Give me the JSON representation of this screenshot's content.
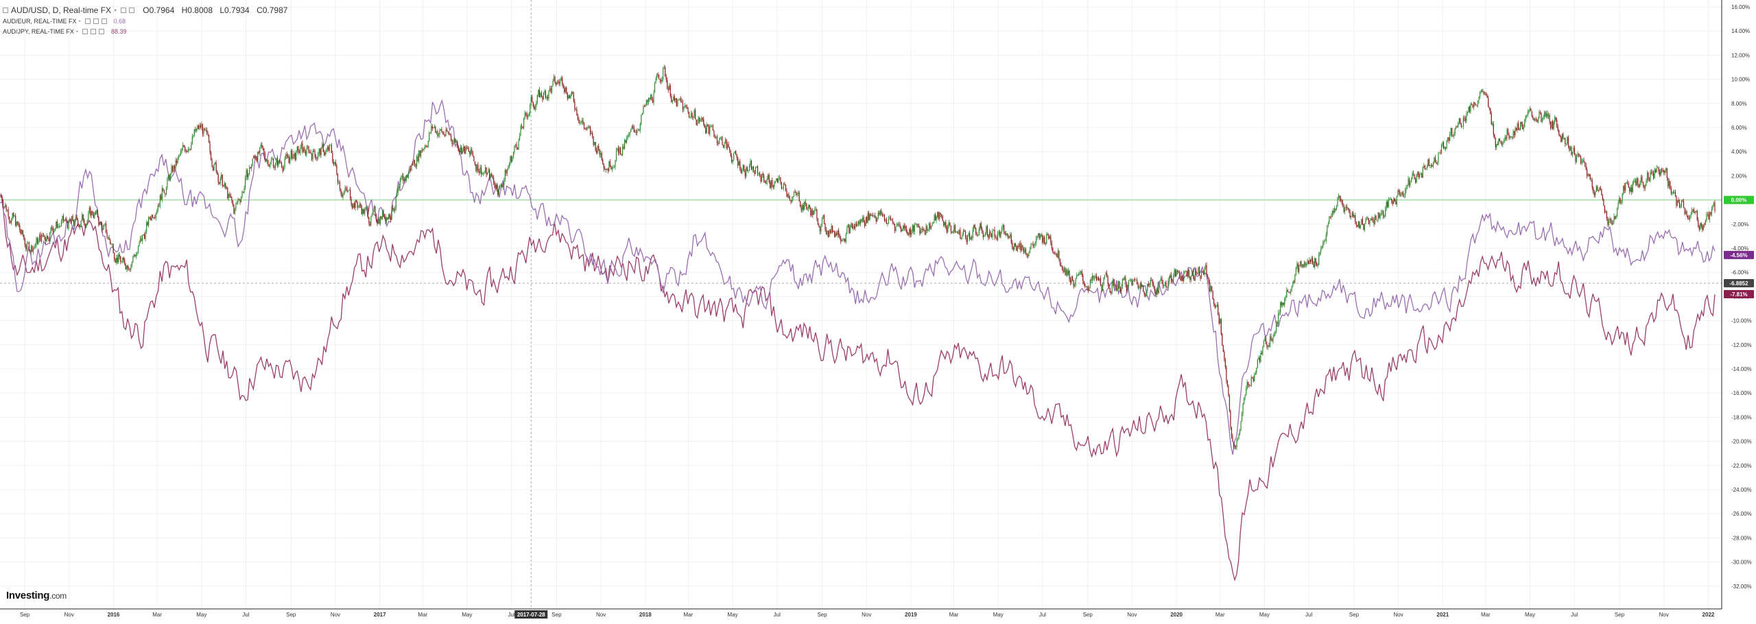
{
  "legend": {
    "main_series": "AUD/USD, D, Real-time FX",
    "ohlc": {
      "open": "O0.7964",
      "high": "H0.8008",
      "low": "L0.7934",
      "close": "C0.7987"
    },
    "compare": [
      {
        "name": "AUD/EUR, REAL-TIME FX",
        "value": "0.68",
        "color": "#9a6fb0"
      },
      {
        "name": "AUD/JPY, REAL-TIME FX",
        "value": "88.39",
        "color": "#9a3e6a"
      }
    ]
  },
  "brand": {
    "name": "Investing",
    "suffix": ".com"
  },
  "crosshair_date": "2017-07-28",
  "price_labels": {
    "current_pct": "0.00%",
    "crosshair_price": "-6.8852",
    "audeur_pct": "-4.56%",
    "audjpy_pct": "-7.81%"
  },
  "colors": {
    "up": "#2e8b2e",
    "down": "#8b1a1a",
    "zero_line": "#7dd87d",
    "audeur": "#9a6fb0",
    "audjpy": "#9a3e6a",
    "grid": "#f0f0f0"
  },
  "chart_data": {
    "type": "line",
    "title": "AUD/USD, D, Real-time FX",
    "ylabel": "",
    "ylim": [
      -33,
      16
    ],
    "y_axis_scale": "percent change",
    "y_ticks": [
      "16.00%",
      "14.00%",
      "12.00%",
      "10.00%",
      "8.00%",
      "6.00%",
      "4.00%",
      "2.00%",
      "0.00%",
      "-2.00%",
      "-4.00%",
      "-6.00%",
      "-8.00%",
      "-10.00%",
      "-12.00%",
      "-14.00%",
      "-16.00%",
      "-18.00%",
      "-20.00%",
      "-22.00%",
      "-24.00%",
      "-26.00%",
      "-28.00%",
      "-30.00%",
      "-32.00%"
    ],
    "x_ticks": [
      "Sep",
      "Nov",
      "2016",
      "Mar",
      "May",
      "Jul",
      "Sep",
      "Nov",
      "2017",
      "Mar",
      "May",
      "Jul",
      "Sep",
      "Nov",
      "2018",
      "Mar",
      "May",
      "Jul",
      "Sep",
      "Nov",
      "2019",
      "Mar",
      "May",
      "Jul",
      "Sep",
      "Nov",
      "2020",
      "Mar",
      "May",
      "Jul",
      "Sep",
      "Nov",
      "2021",
      "Mar",
      "May",
      "Jul",
      "Sep",
      "Nov",
      "2022"
    ],
    "x_range": [
      "2015-07-29",
      "2022-01-10"
    ],
    "grid": true,
    "legend_position": "top-left",
    "series": [
      {
        "name": "AUD/USD, D, Real-time FX",
        "style": "candlestick",
        "x": [
          "2015-07-29",
          "2015-08-20",
          "2015-09-05",
          "2015-09-28",
          "2015-10-12",
          "2015-11-10",
          "2015-12-05",
          "2016-01-15",
          "2016-02-05",
          "2016-03-01",
          "2016-04-15",
          "2016-05-01",
          "2016-05-25",
          "2016-06-15",
          "2016-07-15",
          "2016-08-15",
          "2016-09-15",
          "2016-10-25",
          "2016-11-10",
          "2016-12-20",
          "2017-01-15",
          "2017-02-15",
          "2017-03-15",
          "2017-04-15",
          "2017-05-15",
          "2017-06-15",
          "2017-07-10",
          "2017-07-28",
          "2017-08-20",
          "2017-09-10",
          "2017-10-10",
          "2017-11-10",
          "2017-12-10",
          "2018-01-10",
          "2018-01-25",
          "2018-02-10",
          "2018-03-10",
          "2018-04-15",
          "2018-05-10",
          "2018-06-10",
          "2018-07-10",
          "2018-08-10",
          "2018-09-10",
          "2018-10-10",
          "2018-11-10",
          "2018-12-10",
          "2019-01-10",
          "2019-02-10",
          "2019-03-10",
          "2019-04-10",
          "2019-05-10",
          "2019-06-10",
          "2019-07-10",
          "2019-08-10",
          "2019-09-10",
          "2019-10-10",
          "2019-11-10",
          "2019-12-10",
          "2020-01-10",
          "2020-02-10",
          "2020-03-01",
          "2020-03-19",
          "2020-04-10",
          "2020-05-10",
          "2020-06-10",
          "2020-07-10",
          "2020-08-10",
          "2020-09-10",
          "2020-10-10",
          "2020-11-10",
          "2020-12-10",
          "2021-01-10",
          "2021-02-10",
          "2021-02-25",
          "2021-03-15",
          "2021-04-10",
          "2021-05-10",
          "2021-06-10",
          "2021-07-10",
          "2021-08-10",
          "2021-08-20",
          "2021-09-10",
          "2021-10-10",
          "2021-10-30",
          "2021-11-15",
          "2021-12-03",
          "2021-12-20",
          "2022-01-10"
        ],
        "y": [
          0.5,
          -2,
          -4,
          -3,
          -2,
          -2,
          -1,
          -5.5,
          -4,
          0,
          5,
          6,
          2,
          -1,
          4,
          3,
          4,
          4,
          1,
          -1.5,
          -1,
          3,
          6,
          5,
          3,
          1,
          5,
          8,
          9,
          10,
          6,
          3,
          5,
          8.5,
          11,
          8,
          7,
          5,
          3,
          2,
          1,
          -0.5,
          -2.5,
          -2.5,
          -1,
          -2,
          -2.5,
          -1.5,
          -3,
          -2.5,
          -3,
          -4,
          -3,
          -6.5,
          -7,
          -7,
          -7,
          -7,
          -6,
          -6,
          -10,
          -21,
          -15,
          -11,
          -6,
          -5,
          0,
          -2,
          -1,
          1,
          3,
          5,
          8,
          9,
          5,
          6,
          7,
          6,
          3,
          0,
          -2,
          1,
          2,
          3,
          0,
          -1,
          -2,
          -1
        ]
      },
      {
        "name": "AUD/EUR, REAL-TIME FX",
        "style": "line",
        "x": [
          "2015-07-29",
          "2015-08-20",
          "2015-09-05",
          "2015-09-25",
          "2015-10-15",
          "2015-11-10",
          "2015-11-25",
          "2015-12-20",
          "2016-01-15",
          "2016-02-10",
          "2016-03-10",
          "2016-04-10",
          "2016-05-10",
          "2016-06-10",
          "2016-06-24",
          "2016-07-15",
          "2016-08-15",
          "2016-09-15",
          "2016-10-15",
          "2016-11-10",
          "2016-12-15",
          "2017-01-15",
          "2017-02-15",
          "2017-03-15",
          "2017-04-10",
          "2017-05-10",
          "2017-06-10",
          "2017-07-10",
          "2017-08-10",
          "2017-09-10",
          "2017-10-10",
          "2017-11-10",
          "2017-12-10",
          "2018-01-10",
          "2018-02-10",
          "2018-03-10",
          "2018-04-10",
          "2018-05-10",
          "2018-06-10",
          "2018-07-10",
          "2018-08-10",
          "2018-09-10",
          "2018-10-10",
          "2018-11-10",
          "2018-12-10",
          "2019-01-10",
          "2019-02-10",
          "2019-03-10",
          "2019-04-10",
          "2019-05-10",
          "2019-06-10",
          "2019-07-10",
          "2019-08-10",
          "2019-09-10",
          "2019-10-10",
          "2019-11-10",
          "2019-12-10",
          "2020-01-10",
          "2020-02-10",
          "2020-03-19",
          "2020-04-10",
          "2020-05-10",
          "2020-06-10",
          "2020-07-10",
          "2020-08-10",
          "2020-09-10",
          "2020-10-10",
          "2020-11-10",
          "2020-12-10",
          "2021-01-10",
          "2021-02-10",
          "2021-02-25",
          "2021-03-15",
          "2021-04-10",
          "2021-05-10",
          "2021-06-10",
          "2021-07-10",
          "2021-08-10",
          "2021-09-10",
          "2021-10-10",
          "2021-10-30",
          "2021-11-20",
          "2021-12-10",
          "2022-01-10"
        ],
        "y": [
          0,
          -7,
          -5,
          -4,
          -3,
          -1,
          3,
          -3,
          -5,
          0,
          3,
          0,
          -1,
          -2,
          -4,
          3,
          4,
          6,
          5,
          4,
          -1,
          -1,
          4,
          8,
          6,
          0,
          1,
          0.5,
          -1,
          -2,
          -4,
          -6,
          -4,
          -6,
          -7,
          -3,
          -5,
          -8,
          -8,
          -6,
          -7,
          -5,
          -8,
          -8,
          -6,
          -7,
          -5,
          -6,
          -6,
          -6.5,
          -7.5,
          -8,
          -9,
          -8.5,
          -7,
          -8,
          -7,
          -6,
          -6,
          -21,
          -12,
          -11,
          -9,
          -8,
          -7,
          -9,
          -8,
          -9,
          -9,
          -8,
          -4,
          -2,
          -3,
          -2,
          -3,
          -3,
          -4,
          -3,
          -5,
          -4,
          -2,
          -4,
          -4,
          -4.5
        ]
      },
      {
        "name": "AUD/JPY, REAL-TIME FX",
        "style": "line",
        "x": [
          "2015-07-29",
          "2015-08-20",
          "2015-09-05",
          "2015-09-25",
          "2015-10-15",
          "2015-11-10",
          "2015-12-10",
          "2016-01-15",
          "2016-02-10",
          "2016-03-10",
          "2016-04-10",
          "2016-05-10",
          "2016-06-10",
          "2016-06-24",
          "2016-07-15",
          "2016-08-15",
          "2016-09-15",
          "2016-10-15",
          "2016-11-10",
          "2016-12-15",
          "2017-01-15",
          "2017-02-15",
          "2017-03-15",
          "2017-04-10",
          "2017-05-10",
          "2017-06-10",
          "2017-07-10",
          "2017-07-28",
          "2017-08-20",
          "2017-09-10",
          "2017-10-10",
          "2017-11-10",
          "2017-12-10",
          "2018-01-10",
          "2018-02-10",
          "2018-03-10",
          "2018-04-10",
          "2018-05-10",
          "2018-06-10",
          "2018-07-10",
          "2018-08-10",
          "2018-09-10",
          "2018-10-10",
          "2018-11-10",
          "2018-12-10",
          "2019-01-03",
          "2019-02-10",
          "2019-03-10",
          "2019-04-10",
          "2019-05-10",
          "2019-06-10",
          "2019-07-10",
          "2019-08-10",
          "2019-09-10",
          "2019-10-10",
          "2019-11-10",
          "2019-12-10",
          "2020-01-10",
          "2020-02-10",
          "2020-03-19",
          "2020-04-10",
          "2020-05-10",
          "2020-06-10",
          "2020-07-10",
          "2020-08-10",
          "2020-09-10",
          "2020-10-10",
          "2020-11-10",
          "2020-12-10",
          "2021-01-10",
          "2021-02-10",
          "2021-03-10",
          "2021-04-10",
          "2021-05-10",
          "2021-06-10",
          "2021-07-10",
          "2021-08-10",
          "2021-09-10",
          "2021-10-10",
          "2021-11-10",
          "2021-12-03",
          "2021-12-20",
          "2022-01-10"
        ],
        "y": [
          0,
          -6,
          -6,
          -5,
          -4,
          -3,
          -3,
          -10,
          -11,
          -6,
          -6,
          -12,
          -14,
          -16,
          -14,
          -14,
          -15,
          -13,
          -8,
          -5,
          -4,
          -4,
          -3,
          -6,
          -8,
          -7,
          -5,
          -4,
          -2,
          -3,
          -5,
          -6,
          -5,
          -6,
          -8,
          -9,
          -9,
          -10,
          -8,
          -11,
          -11,
          -12,
          -13,
          -13,
          -13,
          -17,
          -14,
          -13,
          -14,
          -14,
          -16,
          -18,
          -19,
          -21,
          -20,
          -19,
          -18,
          -16,
          -17,
          -31,
          -24,
          -22,
          -19,
          -17,
          -14,
          -14,
          -15,
          -13,
          -12,
          -11,
          -7,
          -5,
          -6,
          -6,
          -6,
          -8,
          -10,
          -12,
          -10,
          -8,
          -12,
          -10,
          -8
        ]
      }
    ]
  }
}
